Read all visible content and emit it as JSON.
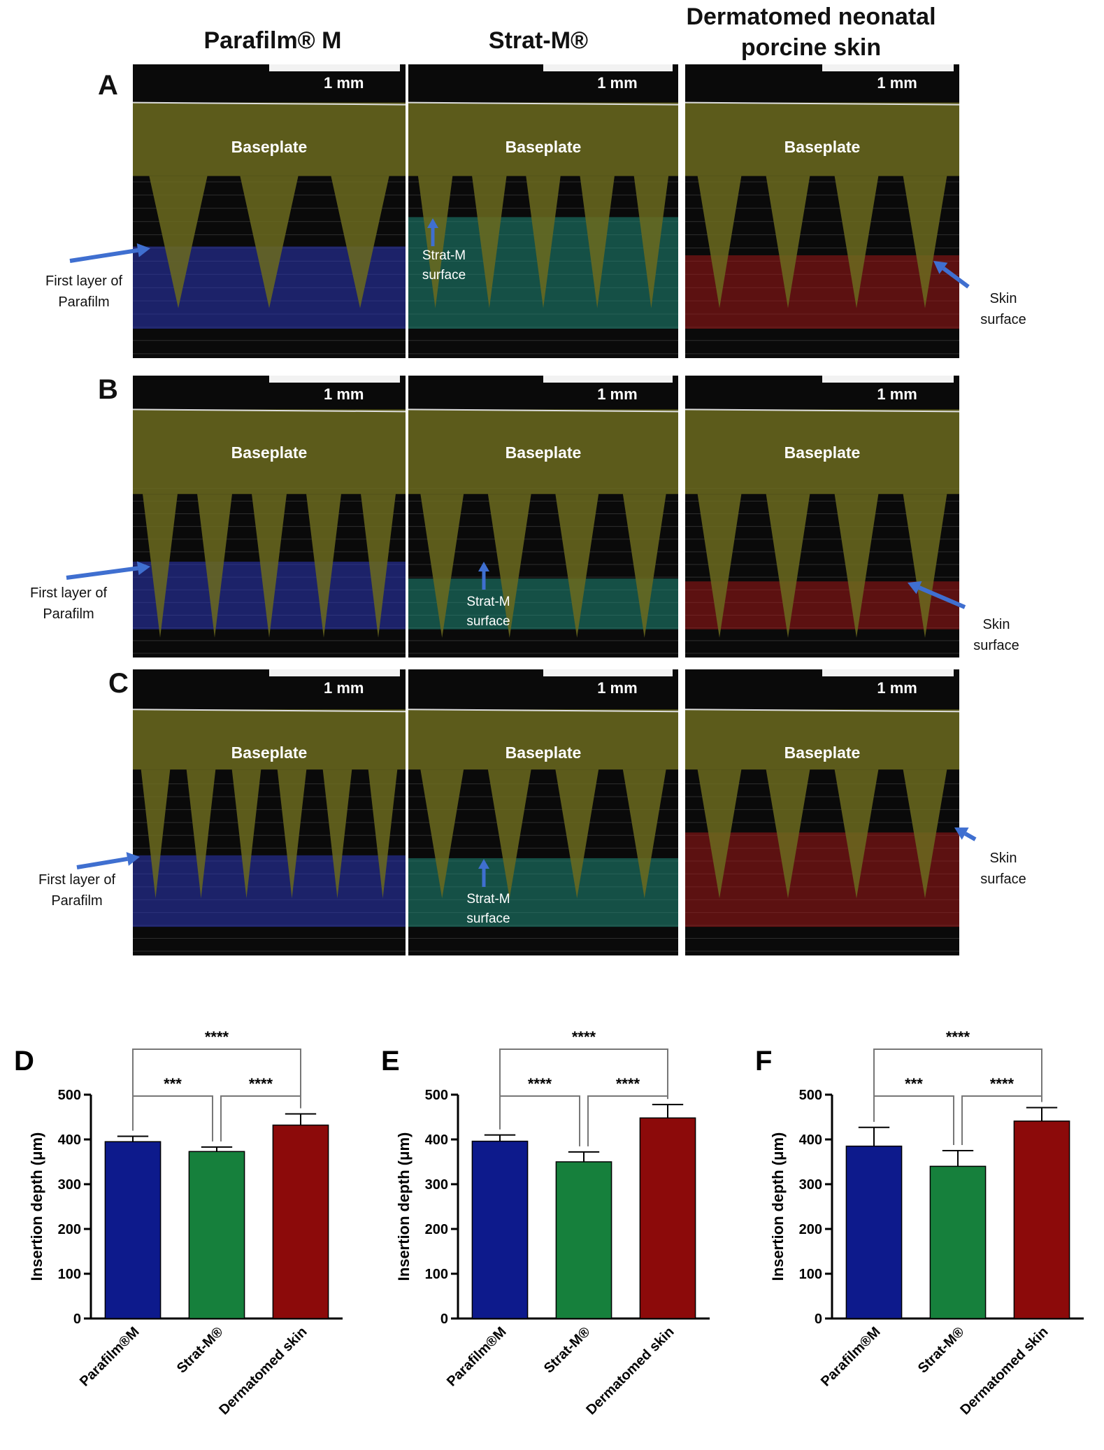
{
  "column_headers": [
    "Parafilm® M",
    "Strat-M®",
    "Dermatomed neonatal porcine skin"
  ],
  "row_letters": [
    "A",
    "B",
    "C"
  ],
  "image_labels": {
    "scale": "1 mm",
    "baseplate": "Baseplate",
    "first_layer": "First layer of Parafilm",
    "stratm_surface": "Strat-M surface",
    "skin_surface": "Skin surface"
  },
  "colors": {
    "parafilm": "#0d1a8c",
    "stratm": "#16803c",
    "skin": "#8c0a0a",
    "arrow": "#3f6fd0",
    "baseplate_overlay": "#6b6a1e"
  },
  "chart_data": [
    {
      "panel": "D",
      "type": "bar",
      "categories": [
        "Parafilm®M",
        "Strat-M®",
        "Dermatomed skin"
      ],
      "values": [
        395,
        373,
        432
      ],
      "errors": [
        12,
        10,
        25
      ],
      "ylabel": "Insertion depth (μm)",
      "ylim": [
        0,
        500
      ],
      "yticks": [
        0,
        100,
        200,
        300,
        400,
        500
      ],
      "significance": [
        {
          "pair": [
            0,
            1
          ],
          "label": "***"
        },
        {
          "pair": [
            1,
            2
          ],
          "label": "****"
        },
        {
          "pair": [
            0,
            2
          ],
          "label": "****"
        }
      ]
    },
    {
      "panel": "E",
      "type": "bar",
      "categories": [
        "Parafilm®M",
        "Strat-M®",
        "Dermatomed skin"
      ],
      "values": [
        396,
        350,
        448
      ],
      "errors": [
        14,
        22,
        30
      ],
      "ylabel": "Insertion depth (μm)",
      "ylim": [
        0,
        500
      ],
      "yticks": [
        0,
        100,
        200,
        300,
        400,
        500
      ],
      "significance": [
        {
          "pair": [
            0,
            1
          ],
          "label": "****"
        },
        {
          "pair": [
            1,
            2
          ],
          "label": "****"
        },
        {
          "pair": [
            0,
            2
          ],
          "label": "****"
        }
      ]
    },
    {
      "panel": "F",
      "type": "bar",
      "categories": [
        "Parafilm®M",
        "Strat-M®",
        "Dermatomed skin"
      ],
      "values": [
        385,
        340,
        441
      ],
      "errors": [
        42,
        35,
        30
      ],
      "ylabel": "Insertion depth (μm)",
      "ylim": [
        0,
        500
      ],
      "yticks": [
        0,
        100,
        200,
        300,
        400,
        500
      ],
      "significance": [
        {
          "pair": [
            0,
            1
          ],
          "label": "***"
        },
        {
          "pair": [
            1,
            2
          ],
          "label": "****"
        },
        {
          "pair": [
            0,
            2
          ],
          "label": "****"
        }
      ]
    }
  ]
}
